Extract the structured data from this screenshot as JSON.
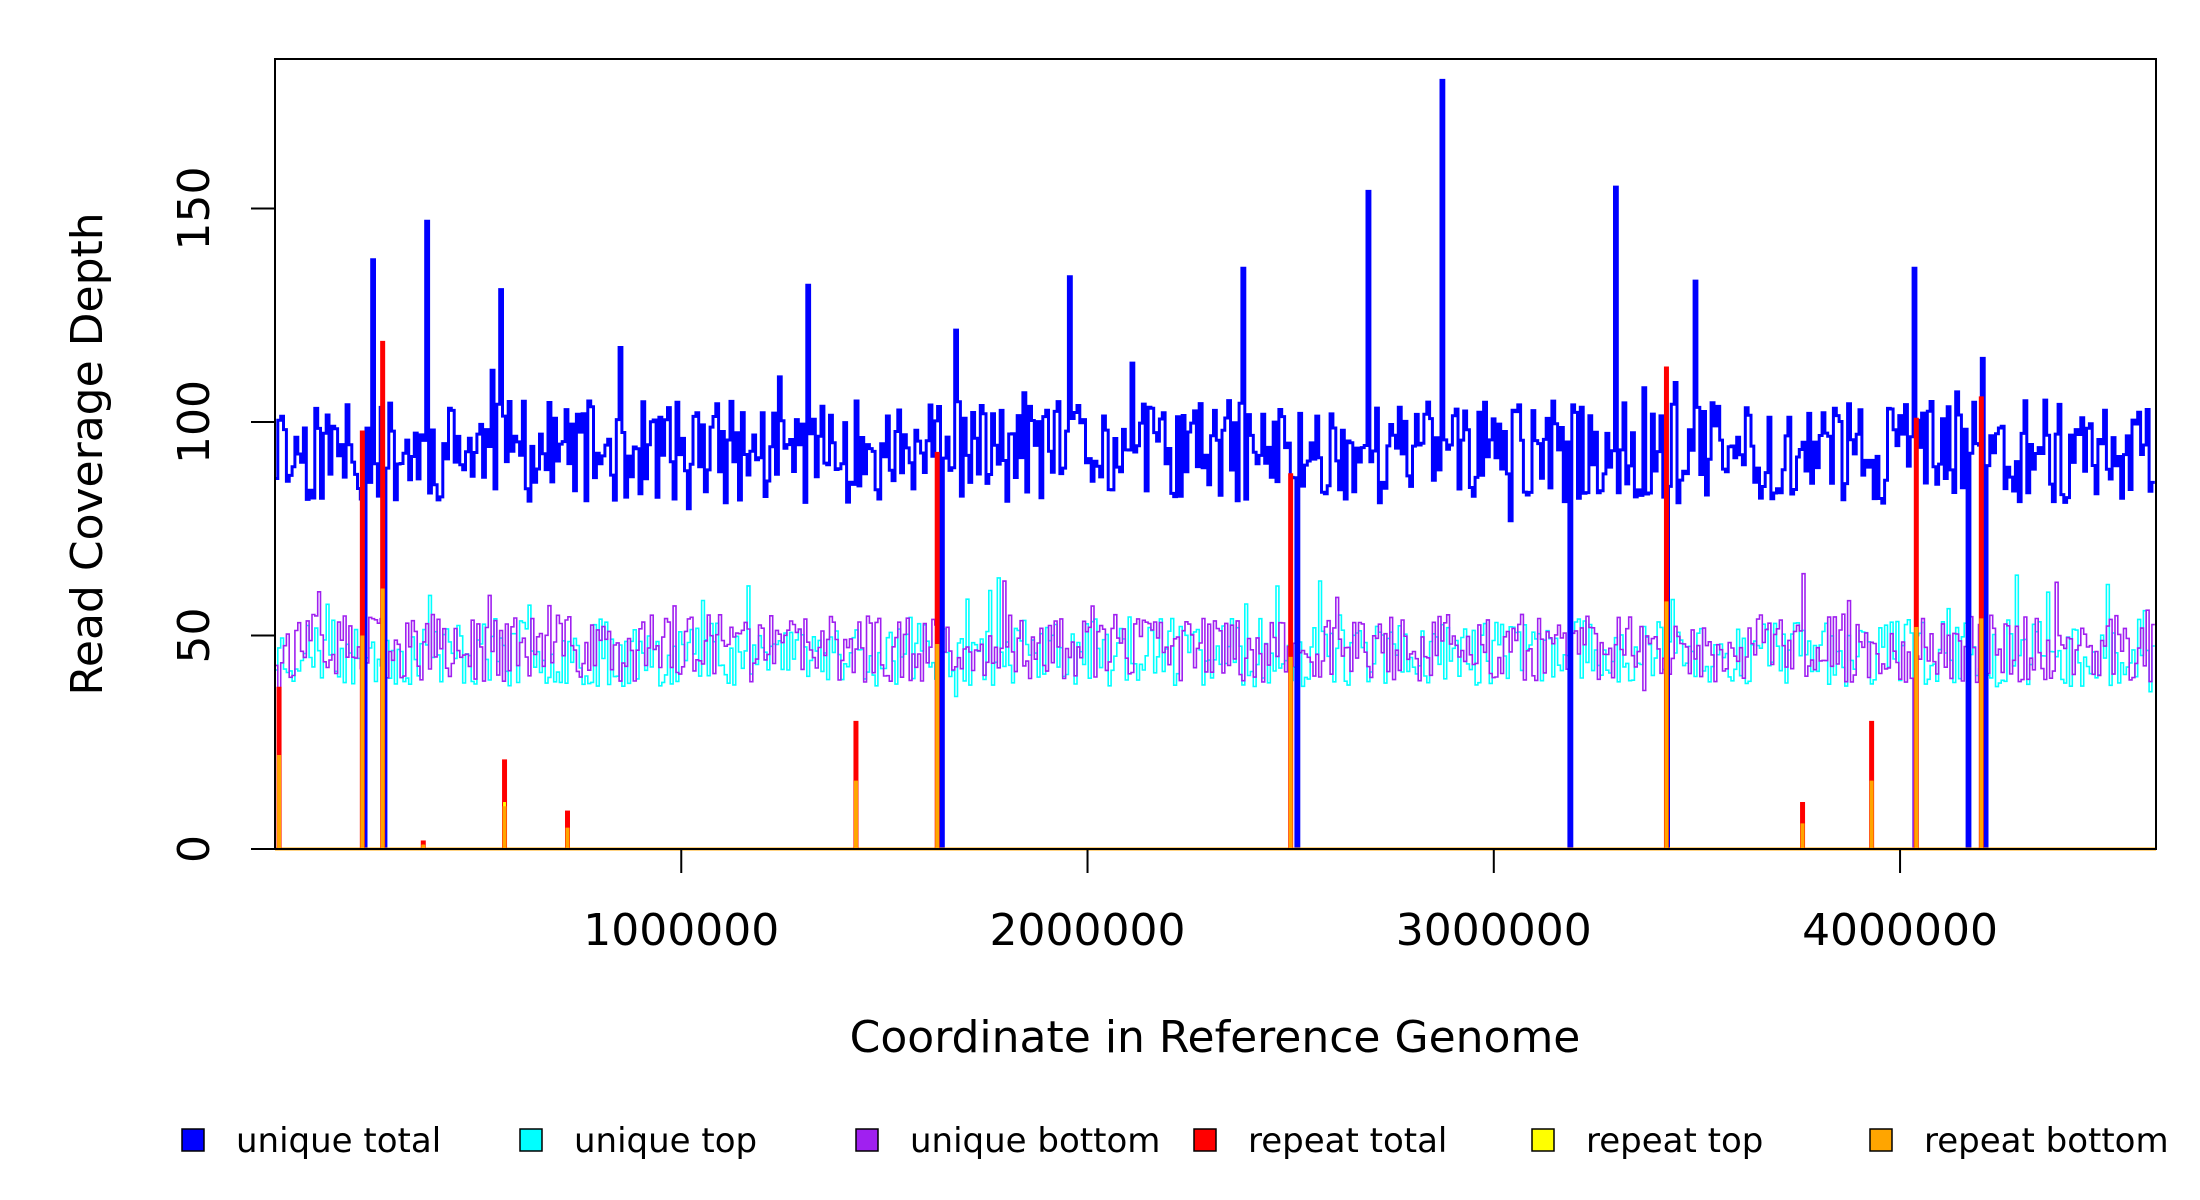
{
  "chart_data": {
    "type": "line",
    "title": "",
    "xlabel": "Coordinate in Reference Genome",
    "ylabel": "Read Coverage Depth",
    "xlim": [
      0,
      4630000
    ],
    "ylim": [
      0,
      185
    ],
    "x_ticks": [
      1000000,
      2000000,
      3000000,
      4000000
    ],
    "x_tick_labels": [
      "1000000",
      "2000000",
      "3000000",
      "4000000"
    ],
    "y_ticks": [
      0,
      50,
      100,
      150
    ],
    "y_tick_labels": [
      "0",
      "50",
      "100",
      "150"
    ],
    "grid": false,
    "legend_position": "bottom",
    "bin_size": 7000,
    "series": [
      {
        "name": "unique total",
        "color": "#0000FF",
        "base": 93,
        "jitter": 12,
        "seed": 11
      },
      {
        "name": "unique top",
        "color": "#00FFFF",
        "base": 46,
        "jitter": 8,
        "seed": 23
      },
      {
        "name": "unique bottom",
        "color": "#A020F0",
        "base": 47,
        "jitter": 8,
        "seed": 37
      },
      {
        "name": "repeat total",
        "color": "#FF0000",
        "base": 0,
        "jitter": 0,
        "seed": 0
      },
      {
        "name": "repeat top",
        "color": "#FFFF00",
        "base": 0,
        "jitter": 0,
        "seed": 0
      },
      {
        "name": "repeat bottom",
        "color": "#FFA500",
        "base": 0,
        "jitter": 0,
        "seed": 0
      }
    ],
    "unique_total_spikes": [
      {
        "x": 370000,
        "y": 147
      },
      {
        "x": 1310000,
        "y": 132
      },
      {
        "x": 2380000,
        "y": 136
      },
      {
        "x": 2690000,
        "y": 154
      },
      {
        "x": 2870000,
        "y": 180
      },
      {
        "x": 3300000,
        "y": 155
      },
      {
        "x": 4030000,
        "y": 136
      },
      {
        "x": 240000,
        "y": 138
      },
      {
        "x": 550000,
        "y": 131
      },
      {
        "x": 1950000,
        "y": 134
      },
      {
        "x": 3490000,
        "y": 133
      }
    ],
    "dropouts": [
      220000,
      265000,
      1635000,
      2510000,
      3185000,
      3425000,
      4030000,
      4165000,
      4205000
    ],
    "repeat_regions": [
      {
        "x": 10000,
        "total": 38,
        "top": 20,
        "bottom": 22
      },
      {
        "x": 215000,
        "total": 98,
        "top": 48,
        "bottom": 50
      },
      {
        "x": 265000,
        "total": 119,
        "top": 58,
        "bottom": 61
      },
      {
        "x": 365000,
        "total": 2,
        "top": 1,
        "bottom": 1
      },
      {
        "x": 565000,
        "total": 21,
        "top": 11,
        "bottom": 10
      },
      {
        "x": 720000,
        "total": 9,
        "top": 4,
        "bottom": 5
      },
      {
        "x": 1430000,
        "total": 30,
        "top": 14,
        "bottom": 16
      },
      {
        "x": 1630000,
        "total": 93,
        "top": 45,
        "bottom": 48
      },
      {
        "x": 2500000,
        "total": 88,
        "top": 43,
        "bottom": 45
      },
      {
        "x": 3425000,
        "total": 113,
        "top": 55,
        "bottom": 58
      },
      {
        "x": 3760000,
        "total": 11,
        "top": 5,
        "bottom": 6
      },
      {
        "x": 3930000,
        "total": 30,
        "top": 14,
        "bottom": 16
      },
      {
        "x": 4040000,
        "total": 101,
        "top": 49,
        "bottom": 52
      },
      {
        "x": 4200000,
        "total": 106,
        "top": 52,
        "bottom": 54
      }
    ]
  }
}
